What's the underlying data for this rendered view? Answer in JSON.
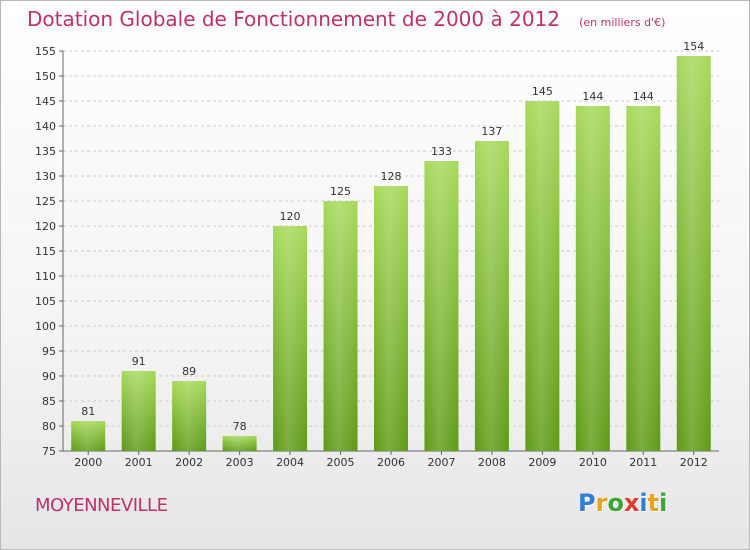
{
  "header": {
    "title": "Dotation Globale de Fonctionnement de 2000 à 2012",
    "unit": "(en milliers d'€)"
  },
  "footer": {
    "commune": "MOYENNEVILLE",
    "logo_letters": [
      "P",
      "r",
      "o",
      "x",
      "i",
      "t",
      "i"
    ],
    "logo_colors": [
      "#2f7fd6",
      "#e8a21a",
      "#3aa535",
      "#e23a2e",
      "#2f7fd6",
      "#e8a21a",
      "#3aa535"
    ]
  },
  "colors": {
    "bar_light": "#a6d95a",
    "bar_dark": "#5e9a16",
    "title": "#c0306a"
  },
  "chart_data": {
    "type": "bar",
    "categories": [
      "2000",
      "2001",
      "2002",
      "2003",
      "2004",
      "2005",
      "2006",
      "2007",
      "2008",
      "2009",
      "2010",
      "2011",
      "2012"
    ],
    "values": [
      81,
      91,
      89,
      78,
      120,
      125,
      128,
      133,
      137,
      145,
      144,
      144,
      154
    ],
    "ylim": [
      75,
      155
    ],
    "yticks": [
      75,
      80,
      85,
      90,
      95,
      100,
      105,
      110,
      115,
      120,
      125,
      130,
      135,
      140,
      145,
      150,
      155
    ],
    "grid": true
  }
}
